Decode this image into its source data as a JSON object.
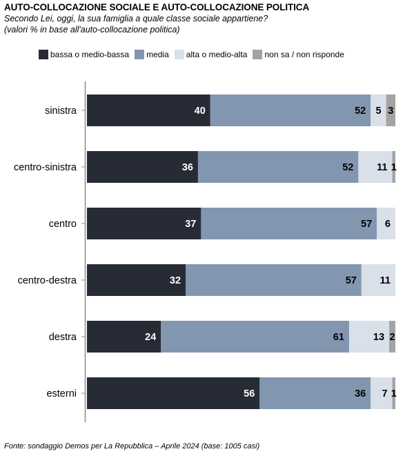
{
  "title": "AUTO-COLLOCAZIONE SOCIALE E AUTO-COLLOCAZIONE POLITICA",
  "subtitle_line1": "Secondo Lei, oggi, la sua famiglia a quale classe sociale appartiene?",
  "subtitle_line2": "(valori % in base all'auto-collocazione politica)",
  "source": "Fonte: sondaggio Demos per La Repubblica – Aprile 2024 (base: 1005 casi)",
  "chart_data": {
    "type": "bar",
    "orientation": "horizontal",
    "stacked": true,
    "categories": [
      "sinistra",
      "centro-sinistra",
      "centro",
      "centro-destra",
      "destra",
      "esterni"
    ],
    "series": [
      {
        "name": "bassa o medio-bassa",
        "color": "#262b35",
        "label_color": "#ffffff",
        "values": [
          40,
          36,
          37,
          32,
          24,
          56
        ]
      },
      {
        "name": "media",
        "color": "#8396b0",
        "label_color": "#000000",
        "values": [
          52,
          52,
          57,
          57,
          61,
          36
        ]
      },
      {
        "name": "alta o medio-alta",
        "color": "#d9e0ea",
        "label_color": "#000000",
        "values": [
          5,
          11,
          6,
          11,
          13,
          7
        ]
      },
      {
        "name": "non sa / non risponde",
        "color": "#a3a3a3",
        "label_color": "#000000",
        "values": [
          3,
          1,
          0,
          0,
          2,
          1
        ]
      }
    ],
    "xlim": [
      0,
      100
    ],
    "grid": false,
    "legend_position": "top"
  }
}
